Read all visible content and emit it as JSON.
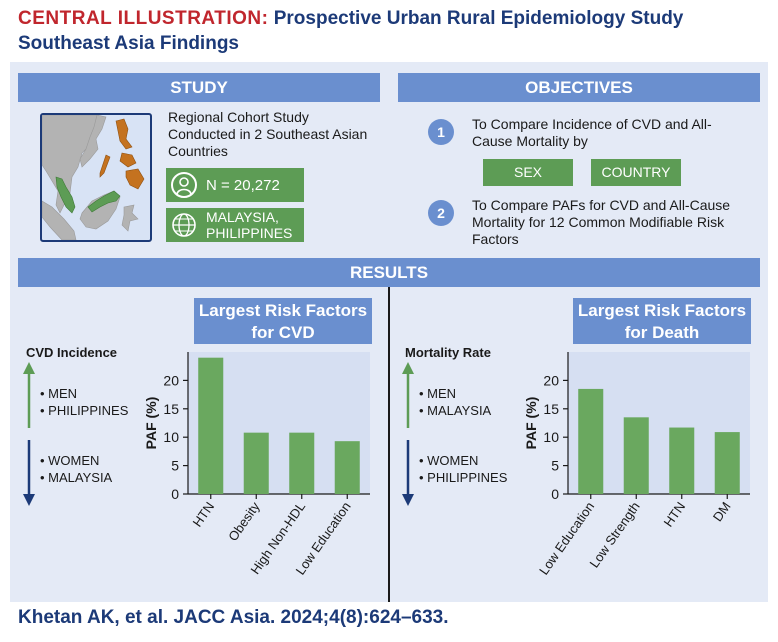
{
  "title": {
    "accent": "CENTRAL ILLUSTRATION:",
    "rest": "Prospective Urban Rural Epidemiology Study",
    "line2": "Southeast Asia Findings"
  },
  "study": {
    "header": "STUDY",
    "description": "Regional Cohort Study Conducted in 2 Southeast Asian Countries",
    "n_label": "N = 20,272",
    "countries_line1": "MALAYSIA,",
    "countries_line2": "PHILIPPINES"
  },
  "objectives": {
    "header": "OBJECTIVES",
    "item1_number": "1",
    "item1_text": "To Compare Incidence of CVD and All-Cause Mortality by",
    "tag_sex": "SEX",
    "tag_country": "COUNTRY",
    "item2_number": "2",
    "item2_text": "To Compare PAFs for CVD and All-Cause Mortality for 12 Common Modifiable Risk Factors"
  },
  "results": {
    "header": "RESULTS",
    "left": {
      "label": "CVD Incidence",
      "up_items": [
        "• MEN",
        "• PHILIPPINES"
      ],
      "down_items": [
        "• WOMEN",
        "• MALAYSIA"
      ],
      "chart_title_line1": "Largest Risk Factors",
      "chart_title_line2": "for CVD"
    },
    "right": {
      "label": "Mortality Rate",
      "up_items": [
        "• MEN",
        "• MALAYSIA"
      ],
      "down_items": [
        "• WOMEN",
        "• PHILIPPINES"
      ],
      "chart_title_line1": "Largest Risk Factors",
      "chart_title_line2": "for Death"
    }
  },
  "citation": "Khetan AK, et al. JACC Asia. 2024;4(8):624–633.",
  "colors": {
    "header_blue": "#6a8fcf",
    "accent_red": "#c0262d",
    "title_navy": "#1c3a78",
    "bar_green": "#6aa85f",
    "arrow_green": "#5d9c55",
    "arrow_navy": "#1c3a78",
    "plot_bg": "#d6dff2"
  },
  "icons": [
    "person-icon",
    "globe-icon"
  ],
  "chart_data": [
    {
      "type": "bar",
      "categories": [
        "HTN",
        "Obesity",
        "High Non-HDL",
        "Low Education"
      ],
      "values": [
        24,
        10.8,
        10.8,
        9.3
      ],
      "ylabel": "PAF (%)",
      "ylim": [
        0,
        25
      ],
      "yticks": [
        0,
        5,
        10,
        15,
        20
      ]
    },
    {
      "type": "bar",
      "categories": [
        "Low Education",
        "Low Strength",
        "HTN",
        "DM"
      ],
      "values": [
        18.5,
        13.5,
        11.7,
        10.9
      ],
      "ylabel": "PAF (%)",
      "ylim": [
        0,
        25
      ],
      "yticks": [
        0,
        5,
        10,
        15,
        20
      ]
    }
  ]
}
